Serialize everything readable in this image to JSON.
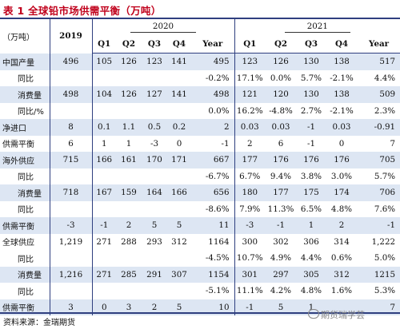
{
  "title": "表 1 全球铅市场供需平衡（万吨）",
  "header": {
    "unit": "（万吨）",
    "col2019": "2019",
    "col2020": "2020",
    "col2021": "2021",
    "quarters2020": [
      "Q1",
      "Q2",
      "Q3",
      "Q4",
      "Year"
    ],
    "quarters2021": [
      "Q1",
      "Q2",
      "Q3",
      "Q4",
      "Year"
    ]
  },
  "rows": [
    {
      "label": "中国产量",
      "tint": true,
      "c2019": "496",
      "y2020": [
        "105",
        "126",
        "123",
        "141",
        "495"
      ],
      "y2021": [
        "123",
        "126",
        "130",
        "138",
        "517"
      ]
    },
    {
      "label": "同比",
      "tint": false,
      "indent": true,
      "c2019": "",
      "y2020": [
        "",
        "",
        "",
        "",
        "-0.2%"
      ],
      "y2021": [
        "17.1%",
        "0.0%",
        "5.7%",
        "-2.1%",
        "4.4%"
      ]
    },
    {
      "label": "消费量",
      "tint": true,
      "indent": true,
      "c2019": "498",
      "y2020": [
        "104",
        "126",
        "127",
        "141",
        "498"
      ],
      "y2021": [
        "121",
        "120",
        "130",
        "138",
        "509"
      ]
    },
    {
      "label": "同比/%",
      "tint": false,
      "indent": true,
      "c2019": "",
      "y2020": [
        "",
        "",
        "",
        "",
        "0.0%"
      ],
      "y2021": [
        "16.2%",
        "-4.8%",
        "2.7%",
        "-2.1%",
        "2.3%"
      ]
    },
    {
      "label": "净进口",
      "tint": true,
      "c2019": "8",
      "y2020": [
        "0.1",
        "1.1",
        "0.5",
        "0.2",
        "2"
      ],
      "y2021": [
        "0.03",
        "0.03",
        "-1",
        "0.03",
        "-0.91"
      ]
    },
    {
      "label": "供需平衡",
      "tint": false,
      "c2019": "6",
      "y2020": [
        "1",
        "1",
        "-3",
        "0",
        "-1"
      ],
      "y2021": [
        "2",
        "6",
        "-1",
        "0",
        "7"
      ]
    },
    {
      "label": "海外供应",
      "tint": true,
      "c2019": "715",
      "y2020": [
        "166",
        "161",
        "170",
        "171",
        "667"
      ],
      "y2021": [
        "177",
        "176",
        "176",
        "176",
        "705"
      ]
    },
    {
      "label": "同比",
      "tint": false,
      "indent": true,
      "c2019": "",
      "y2020": [
        "",
        "",
        "",
        "",
        "-6.7%"
      ],
      "y2021": [
        "6.7%",
        "9.4%",
        "3.8%",
        "3.0%",
        "5.7%"
      ]
    },
    {
      "label": "消费量",
      "tint": true,
      "indent": true,
      "c2019": "718",
      "y2020": [
        "167",
        "159",
        "164",
        "166",
        "656"
      ],
      "y2021": [
        "180",
        "177",
        "175",
        "174",
        "706"
      ]
    },
    {
      "label": "同比",
      "tint": false,
      "indent": true,
      "c2019": "",
      "y2020": [
        "",
        "",
        "",
        "",
        "-8.6%"
      ],
      "y2021": [
        "7.9%",
        "11.3%",
        "6.5%",
        "4.8%",
        "7.6%"
      ]
    },
    {
      "label": "供需平衡",
      "tint": true,
      "c2019": "-3",
      "y2020": [
        "-1",
        "2",
        "5",
        "5",
        "11"
      ],
      "y2021": [
        "-3",
        "-1",
        "1",
        "2",
        "-1"
      ]
    },
    {
      "label": "全球供应",
      "tint": false,
      "c2019": "1,219",
      "y2020": [
        "271",
        "288",
        "293",
        "312",
        "1164"
      ],
      "y2021": [
        "300",
        "302",
        "306",
        "314",
        "1,222"
      ]
    },
    {
      "label": "同比",
      "tint": false,
      "indent": true,
      "c2019": "",
      "y2020": [
        "",
        "",
        "",
        "",
        "-4.5%"
      ],
      "y2021": [
        "10.7%",
        "4.9%",
        "4.4%",
        "0.6%",
        "5.0%"
      ]
    },
    {
      "label": "消费量",
      "tint": true,
      "indent": true,
      "c2019": "1,216",
      "y2020": [
        "271",
        "285",
        "291",
        "307",
        "1154"
      ],
      "y2021": [
        "301",
        "297",
        "305",
        "312",
        "1215"
      ]
    },
    {
      "label": "同比",
      "tint": false,
      "indent": true,
      "c2019": "",
      "y2020": [
        "",
        "",
        "",
        "",
        "-5.1%"
      ],
      "y2021": [
        "11.1%",
        "4.2%",
        "4.8%",
        "1.6%",
        "5.3%"
      ]
    },
    {
      "label": "供需平衡",
      "tint": true,
      "c2019": "3",
      "y2020": [
        "0",
        "3",
        "2",
        "5",
        "10"
      ],
      "y2021": [
        "-1",
        "5",
        "1",
        "",
        "7"
      ]
    }
  ],
  "source": "资料来源：金瑞期货",
  "watermark": "期货瑞学芸",
  "colors": {
    "title": "#c0001b",
    "rule": "#2f3f7f",
    "tint": "#dde6f3"
  }
}
